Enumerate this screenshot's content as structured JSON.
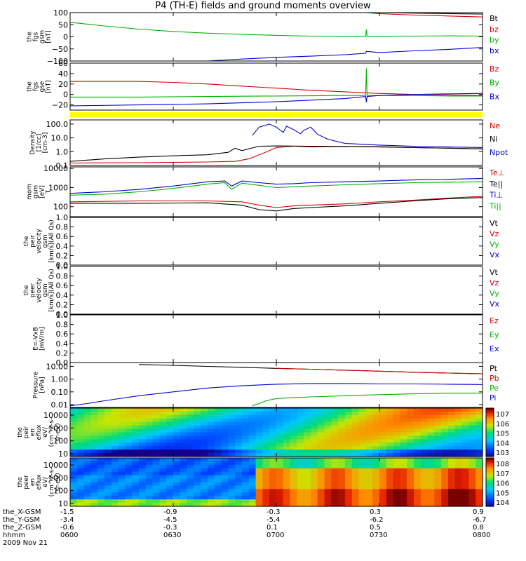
{
  "title": "P4 (TH-E) fields and ground moments overview",
  "chart_data": {
    "type": "line",
    "x_ticks": [
      "0600",
      "0630",
      "0700",
      "0730",
      "0800"
    ],
    "x_range_min": [
      0,
      120
    ],
    "panels": [
      {
        "id": "fgs_gsm",
        "ylabel": [
          "the",
          "fgs",
          "gsm",
          "[nT]"
        ],
        "yticks": [
          "100",
          "50",
          "0",
          "−50",
          "−100"
        ],
        "ylim": [
          -100,
          100
        ],
        "legend": [
          {
            "name": "Bt",
            "color": "#000000"
          },
          {
            "name": "bz",
            "color": "#d40000"
          },
          {
            "name": "by",
            "color": "#00b000"
          },
          {
            "name": "bx",
            "color": "#0000cc"
          }
        ],
        "series": [
          {
            "name": "Bt",
            "color": "#000000",
            "x": [
              86,
              90,
              100,
              110,
              120
            ],
            "y": [
              100,
              100,
              98,
              96,
              94
            ]
          },
          {
            "name": "bz",
            "color": "#d40000",
            "x": [
              86,
              86.2,
              90,
              100,
              110,
              120
            ],
            "y": [
              100,
              100,
              96,
              90,
              86,
              82
            ]
          },
          {
            "name": "by",
            "color": "#00b000",
            "x": [
              0,
              10,
              20,
              30,
              40,
              50,
              60,
              70,
              80,
              86,
              86.2,
              86.4,
              90,
              100,
              110,
              120
            ],
            "y": [
              60,
              45,
              32,
              22,
              15,
              10,
              6,
              3,
              2,
              2,
              30,
              2,
              2,
              3,
              4,
              3
            ]
          },
          {
            "name": "bx",
            "color": "#0000cc",
            "x": [
              40,
              50,
              60,
              70,
              80,
              86,
              86.2,
              90,
              100,
              110,
              120
            ],
            "y": [
              -100,
              -92,
              -85,
              -80,
              -74,
              -68,
              -60,
              -65,
              -58,
              -52,
              -44
            ]
          }
        ]
      },
      {
        "id": "fgs_gse",
        "ylabel": [
          "the",
          "fgs",
          "gse",
          "[nT]"
        ],
        "yticks": [
          "60",
          "40",
          "20",
          "0",
          "−20"
        ],
        "ylim": [
          -30,
          60
        ],
        "legend": [
          {
            "name": "Bz",
            "color": "#d40000"
          },
          {
            "name": "By",
            "color": "#00b000"
          },
          {
            "name": "Bx",
            "color": "#0000cc"
          }
        ],
        "series": [
          {
            "name": "Bz",
            "color": "#d40000",
            "x": [
              0,
              20,
              30,
              40,
              50,
              60,
              70,
              80,
              86,
              90,
              100,
              110,
              120
            ],
            "y": [
              25,
              25,
              23,
              20,
              16,
              12,
              8,
              5,
              3,
              2,
              0,
              -1,
              -2
            ]
          },
          {
            "name": "By",
            "color": "#00b000",
            "x": [
              0,
              20,
              40,
              60,
              80,
              86,
              86.2,
              86.4,
              90,
              100,
              110,
              120
            ],
            "y": [
              -5,
              -5,
              -4,
              -3,
              -2,
              -2,
              50,
              -2,
              -2,
              -2,
              -3,
              -3
            ]
          },
          {
            "name": "Bx",
            "color": "#0000cc",
            "x": [
              0,
              20,
              40,
              60,
              80,
              86,
              86.2,
              86.4,
              90,
              100,
              110,
              120
            ],
            "y": [
              -22,
              -20,
              -18,
              -14,
              -8,
              -4,
              -15,
              -4,
              -2,
              0,
              1,
              2
            ]
          }
        ]
      },
      {
        "id": "density",
        "ylabel": [
          "Density",
          "[1/cc]",
          "[cm-3]"
        ],
        "yticks": [
          "100.0",
          "10.0",
          "1.0",
          "0.1"
        ],
        "ylim": [
          0.1,
          200
        ],
        "scale": "log",
        "legend": [
          {
            "name": "Ne",
            "color": "#d40000"
          },
          {
            "name": "Ni",
            "color": "#000000"
          },
          {
            "name": "Npot",
            "color": "#0000cc"
          }
        ],
        "series": [
          {
            "name": "Ne",
            "color": "#d40000",
            "x": [
              0,
              20,
              40,
              48,
              52,
              55,
              58,
              60,
              65,
              70,
              80,
              90,
              100,
              110,
              120
            ],
            "y": [
              0.15,
              0.16,
              0.18,
              0.2,
              0.3,
              0.6,
              1.2,
              2.0,
              2.5,
              2.2,
              2.4,
              2.3,
              2.0,
              1.8,
              1.6
            ]
          },
          {
            "name": "Ni",
            "color": "#000000",
            "x": [
              0,
              10,
              20,
              30,
              40,
              46,
              48,
              50,
              55,
              60,
              70,
              80,
              90,
              100,
              110,
              120
            ],
            "y": [
              0.2,
              0.3,
              0.4,
              0.5,
              0.6,
              0.9,
              1.8,
              1.2,
              2.5,
              2.6,
              2.5,
              2.4,
              2.2,
              2.0,
              1.8,
              1.6
            ]
          },
          {
            "name": "Npot",
            "color": "#0000cc",
            "x": [
              53,
              55,
              58,
              60,
              62,
              63,
              65,
              67,
              68,
              70,
              72,
              75,
              80,
              90,
              100,
              110,
              120
            ],
            "y": [
              15,
              60,
              100,
              60,
              25,
              70,
              40,
              20,
              35,
              60,
              18,
              8,
              4,
              3,
              2.5,
              2.2,
              2
            ]
          }
        ]
      },
      {
        "id": "mom_temp",
        "ylabel": [
          "mom",
          "gsm",
          "[eV]",
          "T"
        ],
        "yticks": [
          "10000",
          "1000",
          "100"
        ],
        "ylim": [
          30,
          12000
        ],
        "scale": "log",
        "legend": [
          {
            "name": "Te⊥",
            "color": "#d40000"
          },
          {
            "name": "Te||",
            "color": "#000000"
          },
          {
            "name": "Ti⊥",
            "color": "#0000cc"
          },
          {
            "name": "Ti||",
            "color": "#00b000"
          }
        ],
        "series": [
          {
            "name": "Ti⊥",
            "color": "#0000cc",
            "x": [
              0,
              10,
              20,
              30,
              40,
              45,
              47,
              50,
              55,
              60,
              65,
              70,
              80,
              90,
              100,
              110,
              120
            ],
            "y": [
              500,
              600,
              800,
              1200,
              2000,
              2200,
              1200,
              2200,
              1800,
              1500,
              1600,
              1800,
              2000,
              2200,
              2500,
              2700,
              3000
            ]
          },
          {
            "name": "Ti||",
            "color": "#00b000",
            "x": [
              0,
              10,
              20,
              30,
              40,
              45,
              47,
              50,
              55,
              60,
              65,
              70,
              80,
              90,
              100,
              110,
              120
            ],
            "y": [
              400,
              450,
              600,
              900,
              1500,
              1800,
              800,
              1700,
              1300,
              1000,
              1100,
              1200,
              1400,
              1600,
              1800,
              1900,
              2000
            ]
          },
          {
            "name": "Te⊥",
            "color": "#d40000",
            "x": [
              0,
              20,
              40,
              50,
              55,
              60,
              65,
              70,
              80,
              90,
              100,
              110,
              120
            ],
            "y": [
              180,
              200,
              200,
              180,
              120,
              90,
              110,
              120,
              140,
              180,
              220,
              280,
              350
            ]
          },
          {
            "name": "Te||",
            "color": "#000000",
            "x": [
              0,
              20,
              40,
              50,
              55,
              60,
              65,
              70,
              80,
              90,
              100,
              110,
              120
            ],
            "y": [
              150,
              150,
              160,
              120,
              70,
              60,
              80,
              90,
              110,
              150,
              200,
              260,
              300
            ]
          }
        ]
      },
      {
        "id": "v_gsm",
        "ylabel": [
          "the",
          "peir",
          "velocity",
          "gsm",
          "[km/s](All Qs)"
        ],
        "yticks": [
          "1.0",
          "0.8",
          "0.6",
          "0.4",
          "0.2",
          "0.0"
        ],
        "ylim": [
          0,
          1
        ],
        "legend": [
          {
            "name": "Vt",
            "color": "#000000"
          },
          {
            "name": "Vz",
            "color": "#d40000"
          },
          {
            "name": "Vy",
            "color": "#00b000"
          },
          {
            "name": "Vx",
            "color": "#0000cc"
          }
        ],
        "series": []
      },
      {
        "id": "v2_gsm",
        "ylabel": [
          "the",
          "peer",
          "velocity",
          "gsm",
          "[km/s](All Qs)"
        ],
        "yticks": [
          "1.0",
          "0.8",
          "0.6",
          "0.4",
          "0.2",
          "0.0"
        ],
        "ylim": [
          0,
          1
        ],
        "legend": [
          {
            "name": "Vt",
            "color": "#000000"
          },
          {
            "name": "Vz",
            "color": "#d40000"
          },
          {
            "name": "Vy",
            "color": "#00b000"
          },
          {
            "name": "Vx",
            "color": "#0000cc"
          }
        ],
        "series": []
      },
      {
        "id": "e_field",
        "ylabel": [
          "E=-VxB",
          "[mV/m]"
        ],
        "yticks": [
          "1.0",
          "0.8",
          "0.6",
          "0.4",
          "0.2",
          "0.0"
        ],
        "ylim": [
          0,
          1
        ],
        "legend": [
          {
            "name": "Ez",
            "color": "#d40000"
          },
          {
            "name": "Ey",
            "color": "#00b000"
          },
          {
            "name": "Ex",
            "color": "#0000cc"
          }
        ],
        "series": []
      },
      {
        "id": "pressure",
        "ylabel": [
          "Pressure",
          "[nPa]"
        ],
        "yticks": [
          "10.00",
          "1.00",
          "0.10",
          "0.01"
        ],
        "ylim": [
          0.006,
          20
        ],
        "scale": "log",
        "legend": [
          {
            "name": "Pt",
            "color": "#000000"
          },
          {
            "name": "Pb",
            "color": "#d40000"
          },
          {
            "name": "Pe",
            "color": "#00b000"
          },
          {
            "name": "Pi",
            "color": "#0000cc"
          }
        ],
        "series": [
          {
            "name": "Pt",
            "color": "#000000",
            "x": [
              20,
              30,
              40,
              50,
              60,
              70,
              80,
              90,
              100,
              110,
              120
            ],
            "y": [
              14,
              12,
              10,
              8.5,
              7,
              6,
              5,
              4.2,
              3.5,
              3.0,
              2.6
            ]
          },
          {
            "name": "Pb",
            "color": "#d40000",
            "x": [
              60,
              70,
              80,
              90,
              100,
              110,
              120
            ],
            "y": [
              7,
              6,
              5,
              4.2,
              3.5,
              3.0,
              2.6
            ]
          },
          {
            "name": "Pi",
            "color": "#0000cc",
            "x": [
              0,
              5,
              10,
              20,
              30,
              40,
              50,
              60,
              70,
              80,
              90,
              100,
              110,
              120
            ],
            "y": [
              0.008,
              0.012,
              0.02,
              0.05,
              0.1,
              0.2,
              0.3,
              0.4,
              0.45,
              0.45,
              0.42,
              0.42,
              0.4,
              0.38
            ]
          },
          {
            "name": "Pe",
            "color": "#00b000",
            "x": [
              53,
              55,
              57,
              60,
              65,
              70,
              80,
              90,
              100,
              110,
              120
            ],
            "y": [
              0.008,
              0.012,
              0.02,
              0.03,
              0.035,
              0.04,
              0.05,
              0.06,
              0.07,
              0.08,
              0.08
            ]
          }
        ]
      },
      {
        "id": "peir_spec",
        "type": "heatmap",
        "ylabel": [
          "the",
          "peir",
          "en",
          "eflux",
          "eV/",
          "(cm^2-s-",
          "sr-eV)"
        ],
        "yticks": [
          "10000",
          "1000",
          "100",
          "10"
        ],
        "colorbar_ticks": [
          "10^7",
          "10^6",
          "10^5",
          "10^4",
          "10^3"
        ]
      },
      {
        "id": "peer_spec",
        "type": "heatmap",
        "ylabel": [
          "the",
          "peer",
          "en",
          "eflux",
          "eV/",
          "(cm^2-s-",
          "sr-eV)"
        ],
        "yticks": [
          "10000",
          "1000",
          "100",
          "10"
        ],
        "colorbar_ticks": [
          "10^8",
          "10^7",
          "10^6",
          "10^5",
          "10^4"
        ]
      }
    ]
  },
  "footer": {
    "rows": [
      {
        "label": "the_X-GSM",
        "values": [
          "-1.5",
          "-0.9",
          "-0.3",
          "0.3",
          "0.9"
        ]
      },
      {
        "label": "the_Y-GSM",
        "values": [
          "-3.4",
          "-4.5",
          "-5.4",
          "-6.2",
          "-6.7"
        ]
      },
      {
        "label": "the_Z-GSM",
        "values": [
          "-0.6",
          "-0.3",
          "0.1",
          "0.5",
          "0.8"
        ]
      },
      {
        "label": "hhmm",
        "values": [
          "0600",
          "0630",
          "0700",
          "0730",
          "0800"
        ]
      }
    ],
    "date": "2009 Nov 21"
  }
}
